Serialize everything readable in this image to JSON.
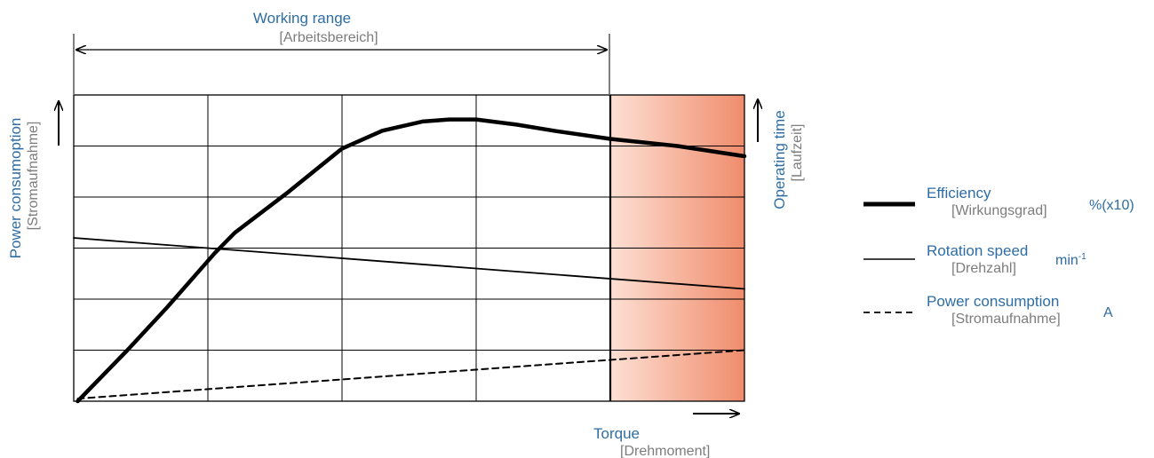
{
  "chart_data": {
    "type": "line",
    "title": "Working range",
    "title_de": "[Arbeitsbereich]",
    "xlabel": "Torque",
    "xlabel_de": "[Drehmoment]",
    "ylabel_left": "Power consumoption",
    "ylabel_left_de": "[Stromaufnahme]",
    "ylabel_right": "Operating time",
    "ylabel_right_de": "[Laufzeit]",
    "xlim": [
      0,
      5
    ],
    "ylim": [
      0,
      6
    ],
    "grid": true,
    "legend_position": "right",
    "overload_zone": {
      "x_start": 4,
      "x_end": 5
    },
    "series": [
      {
        "name": "Efficiency",
        "name_de": "[Wirkungsgrad]",
        "unit": "%(x10)",
        "style": "thick",
        "x": [
          0.03,
          0.4,
          0.7,
          1.05,
          1.2,
          1.6,
          2.0,
          2.3,
          2.6,
          2.8,
          3.0,
          3.3,
          3.6,
          4.0,
          4.5,
          5.0
        ],
        "y": [
          0.0,
          1.0,
          1.85,
          2.9,
          3.3,
          4.1,
          4.95,
          5.3,
          5.48,
          5.52,
          5.52,
          5.42,
          5.29,
          5.14,
          5.0,
          4.8
        ]
      },
      {
        "name": "Rotation speed",
        "name_de": "[Drehzahl]",
        "unit": "min",
        "unit_sup": "-1",
        "style": "thin",
        "x": [
          0,
          5
        ],
        "y": [
          3.2,
          2.2
        ]
      },
      {
        "name": "Power consumption",
        "name_de": "[Stromaufnahme]",
        "unit": "A",
        "style": "dashed",
        "x": [
          0.03,
          5
        ],
        "y": [
          0.05,
          1.0
        ]
      }
    ]
  },
  "colors": {
    "text_blue": "#2e6da4",
    "text_gray": "#7d7d7d",
    "zone_light": "#fde0d4",
    "zone_dark": "#f08c6c"
  }
}
